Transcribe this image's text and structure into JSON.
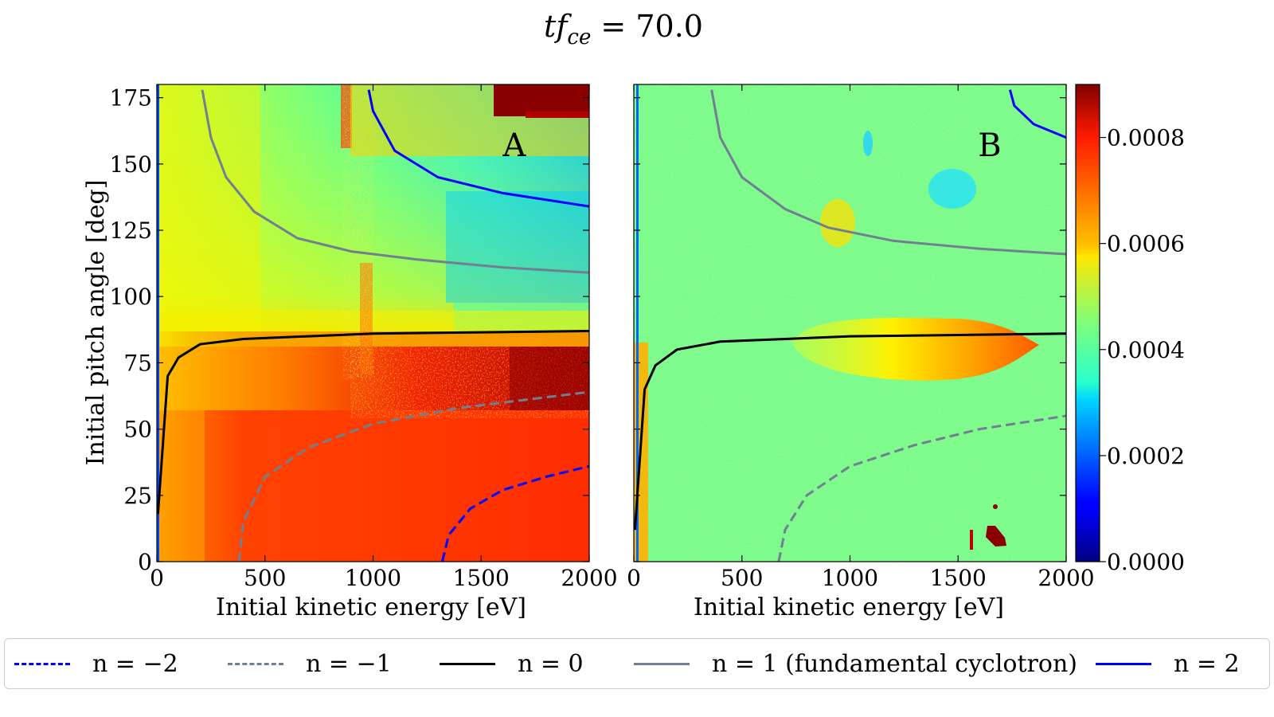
{
  "figure": {
    "title": "tf_ce = 70.0",
    "title_main": "tf",
    "title_sub": "ce",
    "title_rest": " = 70.0"
  },
  "panels": [
    {
      "label": "A",
      "xlabel": "Initial kinetic energy [eV]",
      "ylabel": "Initial pitch angle [deg]"
    },
    {
      "label": "B",
      "xlabel": "Initial kinetic energy [eV]",
      "ylabel": ""
    }
  ],
  "colorbar": {
    "colormap": "jet",
    "min": 0.0,
    "max": 0.0009,
    "ticks": [
      "0.0000",
      "0.0002",
      "0.0004",
      "0.0006",
      "0.0008"
    ],
    "tick_values": [
      0.0,
      0.0002,
      0.0004,
      0.0006,
      0.0008
    ]
  },
  "legend": [
    {
      "label": "n = −2",
      "color": "#0000ff",
      "style": "dashed"
    },
    {
      "label": "n = −1",
      "color": "#708090",
      "style": "dashed"
    },
    {
      "label": "n = 0",
      "color": "#000000",
      "style": "solid"
    },
    {
      "label": "n = 1 (fundamental cyclotron)",
      "color": "#708090",
      "style": "solid"
    },
    {
      "label": "n = 2",
      "color": "#0000ff",
      "style": "solid"
    }
  ],
  "chart_data": [
    {
      "type": "heatmap",
      "panel": "A",
      "xlabel": "Initial kinetic energy [eV]",
      "ylabel": "Initial pitch angle [deg]",
      "xlim": [
        0,
        2000
      ],
      "ylim": [
        0,
        180
      ],
      "xticks": [
        "0",
        "500",
        "1000",
        "1500",
        "2000"
      ],
      "yticks": [
        "0",
        "25",
        "50",
        "75",
        "100",
        "125",
        "150",
        "175"
      ],
      "series": [
        {
          "name": "n = 0",
          "x": [
            5,
            50,
            100,
            200,
            400,
            700,
            1000,
            1500,
            2000
          ],
          "y": [
            18,
            70,
            77,
            82,
            84,
            85,
            86,
            86.5,
            87
          ]
        },
        {
          "name": "n = 1 (fundamental cyclotron)",
          "x": [
            210,
            250,
            320,
            450,
            650,
            900,
            1200,
            1600,
            2000
          ],
          "y": [
            178,
            160,
            145,
            132,
            122,
            117,
            114,
            111,
            109
          ]
        },
        {
          "name": "n = 2",
          "x": [
            980,
            1000,
            1100,
            1300,
            1600,
            2000
          ],
          "y": [
            178,
            170,
            155,
            145,
            139,
            134
          ]
        },
        {
          "name": "n = −1",
          "x": [
            380,
            400,
            500,
            700,
            1000,
            1400,
            2000
          ],
          "y": [
            0,
            15,
            32,
            43,
            52,
            58,
            64
          ]
        },
        {
          "name": "n = −2",
          "x": [
            1320,
            1350,
            1450,
            1600,
            1800,
            2000
          ],
          "y": [
            0,
            10,
            20,
            27,
            32,
            36
          ]
        }
      ],
      "regions": [
        {
          "desc": "low pitch angle red region",
          "x": [
            0,
            2000
          ],
          "y": [
            0,
            58
          ],
          "value": 0.00085
        },
        {
          "desc": "chaotic dark red band",
          "x": [
            900,
            2000
          ],
          "y": [
            58,
            82
          ],
          "value": 0.0009
        },
        {
          "desc": "upper green-cyan region",
          "x": [
            0,
            2000
          ],
          "y": [
            90,
            180
          ],
          "value": 0.0004
        },
        {
          "desc": "upper right dark red corner",
          "x": [
            1600,
            2000
          ],
          "y": [
            165,
            180
          ],
          "value": 0.0009
        }
      ]
    },
    {
      "type": "heatmap",
      "panel": "B",
      "xlabel": "Initial kinetic energy [eV]",
      "xlim": [
        0,
        2000
      ],
      "ylim": [
        0,
        180
      ],
      "xticks": [
        "0",
        "500",
        "1000",
        "1500",
        "2000"
      ],
      "series": [
        {
          "name": "n = 0",
          "x": [
            5,
            50,
            100,
            200,
            400,
            700,
            1000,
            1500,
            2000
          ],
          "y": [
            12,
            65,
            74,
            80,
            83,
            84,
            85,
            85.5,
            86
          ]
        },
        {
          "name": "n = 1 (fundamental cyclotron)",
          "x": [
            360,
            400,
            500,
            700,
            900,
            1200,
            1600,
            2000
          ],
          "y": [
            178,
            160,
            145,
            133,
            126,
            121,
            118,
            116
          ]
        },
        {
          "name": "n = 2",
          "x": [
            1740,
            1760,
            1850,
            2000
          ],
          "y": [
            178,
            172,
            165,
            160
          ]
        },
        {
          "name": "n = −1",
          "x": [
            670,
            700,
            800,
            1000,
            1300,
            1600,
            2000
          ],
          "y": [
            0,
            12,
            25,
            36,
            44,
            50,
            55
          ]
        }
      ],
      "regions": [
        {
          "desc": "background noisy green",
          "x": [
            0,
            2000
          ],
          "y": [
            0,
            180
          ],
          "value": 0.00048
        },
        {
          "desc": "elongated orange blob",
          "x": [
            750,
            1880
          ],
          "y": [
            68,
            98
          ],
          "value": 0.00065
        },
        {
          "desc": "cyan patch",
          "x": [
            1350,
            1500
          ],
          "y": [
            130,
            145
          ],
          "value": 0.00035
        },
        {
          "desc": "dark red spot",
          "x": [
            1630,
            1720
          ],
          "y": [
            5,
            15
          ],
          "value": 0.0009
        }
      ]
    }
  ]
}
